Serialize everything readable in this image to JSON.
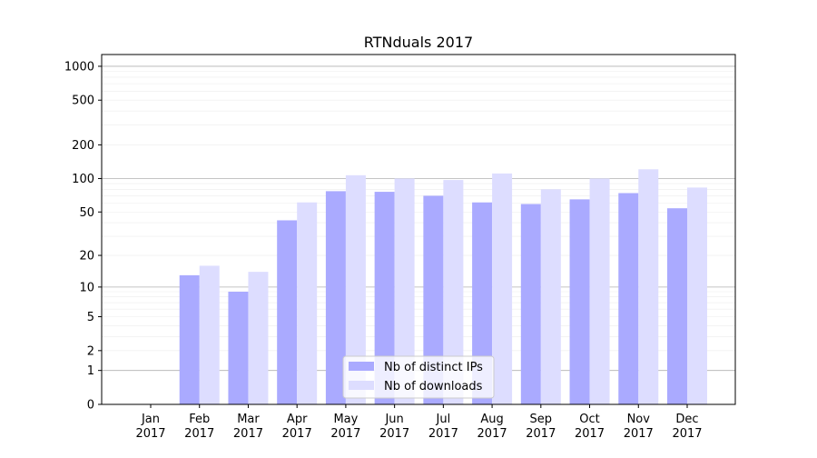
{
  "chart_data": {
    "type": "bar",
    "title": "RTNduals 2017",
    "xlabel": "",
    "ylabel": "",
    "yscale": "symlog (log10(1+y))",
    "ylim": [
      0,
      1200
    ],
    "yticks": [
      0,
      1,
      2,
      5,
      10,
      20,
      50,
      100,
      200,
      500,
      1000
    ],
    "categories": [
      "Jan\n2017",
      "Feb\n2017",
      "Mar\n2017",
      "Apr\n2017",
      "May\n2017",
      "Jun\n2017",
      "Jul\n2017",
      "Aug\n2017",
      "Sep\n2017",
      "Oct\n2017",
      "Nov\n2017",
      "Dec\n2017"
    ],
    "series": [
      {
        "name": "Nb of distinct IPs",
        "color": "#aaaaff",
        "values": [
          0,
          13,
          9,
          42,
          77,
          76,
          70,
          61,
          59,
          65,
          74,
          54
        ]
      },
      {
        "name": "Nb of downloads",
        "color": "#ddddff",
        "values": [
          0,
          16,
          14,
          61,
          107,
          100,
          97,
          111,
          80,
          100,
          121,
          83
        ]
      }
    ],
    "grid": true,
    "legend": "bottom-center"
  }
}
